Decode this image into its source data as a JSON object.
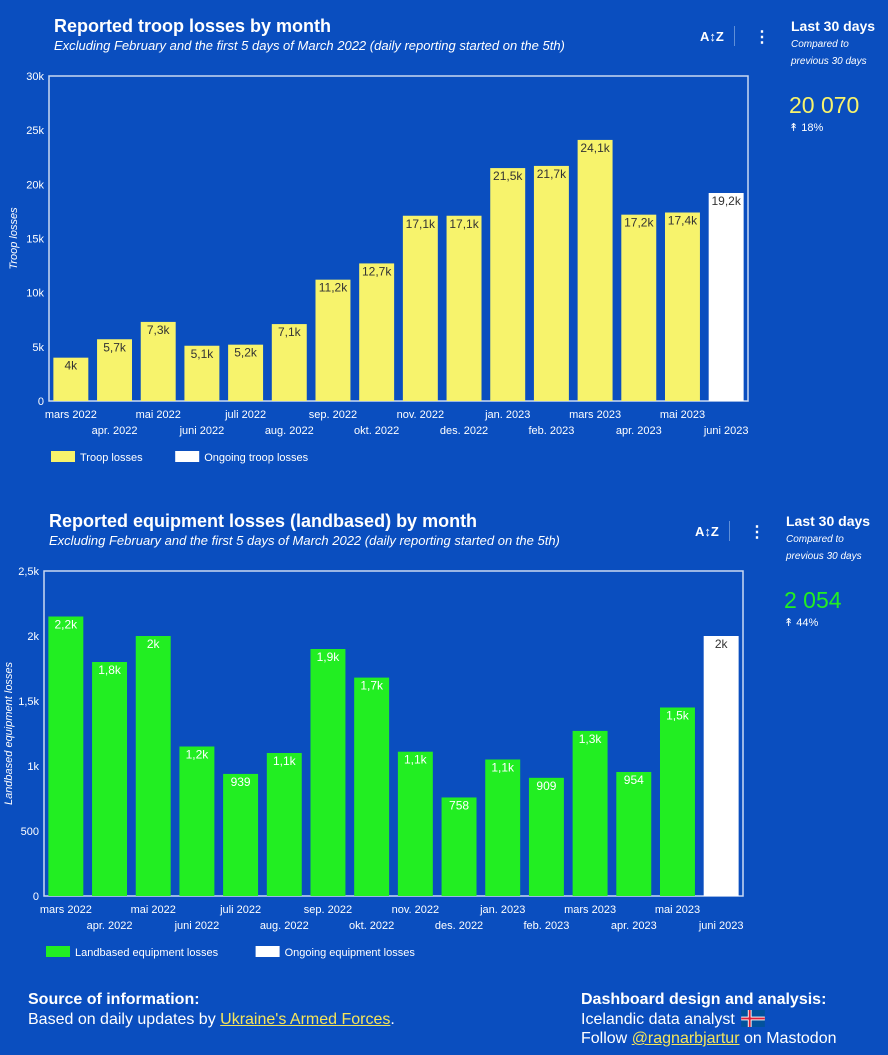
{
  "troop": {
    "title": "Reported troop losses by month",
    "subtitle": "Excluding February and the first 5 days of March 2022 (daily reporting started on the 5th)",
    "kpi": {
      "title": "Last 30 days",
      "subtitle": "Compared to previous 30 days",
      "value": "20 070",
      "delta": "↟ 18%",
      "value_color": "#f7f36c"
    }
  },
  "equip": {
    "title": "Reported equipment losses (landbased) by month",
    "subtitle": "Excluding February and the first 5 days of March 2022 (daily reporting started on the 5th)",
    "kpi": {
      "title": "Last 30 days",
      "subtitle": "Compared to previous 30 days",
      "value": "2 054",
      "delta": "↟ 44%",
      "value_color": "#22ee22"
    }
  },
  "toolbar": {
    "sort_icon": "A↕Z",
    "more_icon": "⋮"
  },
  "footer": {
    "source_title": "Source of information:",
    "source_prefix": "Based on daily updates by ",
    "source_link": "Ukraine's Armed Forces",
    "source_suffix": ".",
    "design_title": "Dashboard design and analysis:",
    "design_line1": "Icelandic data analyst",
    "follow_prefix": "Follow ",
    "follow_link": "@ragnarbjartur",
    "follow_suffix": " on Mastodon"
  },
  "chart_data": [
    {
      "type": "bar",
      "title": "Reported troop losses by month",
      "ylabel": "Troop losses",
      "ylim": [
        0,
        30000
      ],
      "yticks": [
        0,
        5000,
        10000,
        15000,
        20000,
        25000,
        30000
      ],
      "ytick_labels": [
        "0",
        "5k",
        "10k",
        "15k",
        "20k",
        "25k",
        "30k"
      ],
      "categories": [
        "mars 2022",
        "apr. 2022",
        "mai 2022",
        "juni 2022",
        "juli 2022",
        "aug. 2022",
        "sep. 2022",
        "okt. 2022",
        "nov. 2022",
        "des. 2022",
        "jan. 2023",
        "feb. 2023",
        "mars 2023",
        "apr. 2023",
        "mai 2023",
        "juni 2023"
      ],
      "series": [
        {
          "name": "Troop losses",
          "color": "#f7f36c",
          "values": [
            4000,
            5700,
            7300,
            5100,
            5200,
            7100,
            11200,
            12700,
            17100,
            17100,
            21500,
            21700,
            24100,
            17200,
            17400,
            null
          ]
        },
        {
          "name": "Ongoing troop losses",
          "color": "#ffffff",
          "values": [
            null,
            null,
            null,
            null,
            null,
            null,
            null,
            null,
            null,
            null,
            null,
            null,
            null,
            null,
            null,
            19200
          ]
        }
      ],
      "data_labels": [
        "4k",
        "5,7k",
        "7,3k",
        "5,1k",
        "5,2k",
        "7,1k",
        "11,2k",
        "12,7k",
        "17,1k",
        "17,1k",
        "21,5k",
        "21,7k",
        "24,1k",
        "17,2k",
        "17,4k",
        "19,2k"
      ],
      "label_color": "#333333",
      "legend": "bottom-left",
      "grid": false
    },
    {
      "type": "bar",
      "title": "Reported equipment losses (landbased) by month",
      "ylabel": "Landbased equipment losses",
      "ylim": [
        0,
        2500
      ],
      "yticks": [
        0,
        500,
        1000,
        1500,
        2000,
        2500
      ],
      "ytick_labels": [
        "0",
        "500",
        "1k",
        "1,5k",
        "2k",
        "2,5k"
      ],
      "categories": [
        "mars 2022",
        "apr. 2022",
        "mai 2022",
        "juni 2022",
        "juli 2022",
        "aug. 2022",
        "sep. 2022",
        "okt. 2022",
        "nov. 2022",
        "des. 2022",
        "jan. 2023",
        "feb. 2023",
        "mars 2023",
        "apr. 2023",
        "mai 2023",
        "juni 2023"
      ],
      "series": [
        {
          "name": "Landbased equipment losses",
          "color": "#22ee22",
          "values": [
            2150,
            1800,
            2000,
            1150,
            939,
            1100,
            1900,
            1680,
            1110,
            758,
            1050,
            909,
            1270,
            954,
            1450,
            null
          ]
        },
        {
          "name": "Ongoing equipment losses",
          "color": "#ffffff",
          "values": [
            null,
            null,
            null,
            null,
            null,
            null,
            null,
            null,
            null,
            null,
            null,
            null,
            null,
            null,
            null,
            2000
          ]
        }
      ],
      "data_labels": [
        "2,2k",
        "1,8k",
        "2k",
        "1,2k",
        "939",
        "1,1k",
        "1,9k",
        "1,7k",
        "1,1k",
        "758",
        "1,1k",
        "909",
        "1,3k",
        "954",
        "1,5k",
        "2k"
      ],
      "label_color": "#ffffff",
      "legend": "bottom-left",
      "grid": false
    }
  ]
}
